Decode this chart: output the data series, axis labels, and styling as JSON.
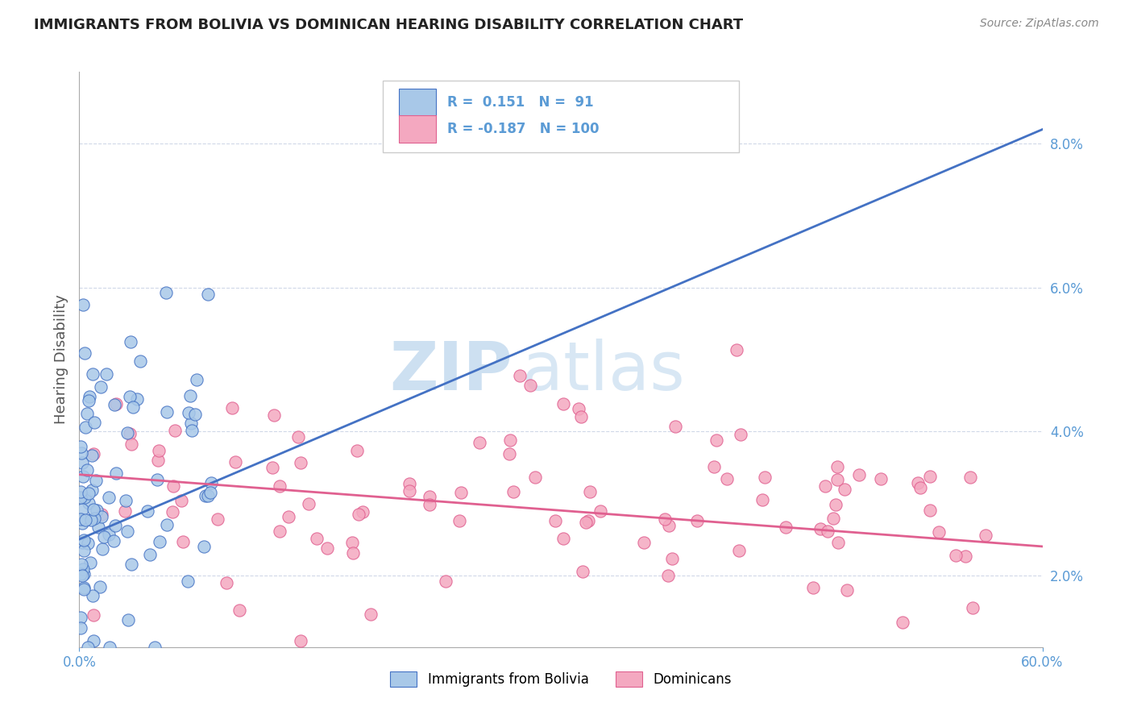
{
  "title": "IMMIGRANTS FROM BOLIVIA VS DOMINICAN HEARING DISABILITY CORRELATION CHART",
  "source": "Source: ZipAtlas.com",
  "ylabel": "Hearing Disability",
  "right_yticks": [
    2.0,
    4.0,
    6.0,
    8.0
  ],
  "xlim": [
    0.0,
    0.6
  ],
  "ylim": [
    0.01,
    0.09
  ],
  "r_bolivia": 0.151,
  "n_bolivia": 91,
  "r_dominican": -0.187,
  "n_dominican": 100,
  "color_bolivia": "#a8c8e8",
  "color_bolivia_dark": "#4472c4",
  "color_dominican": "#f4a8c0",
  "color_dominican_dark": "#e06090",
  "color_bolivia_line": "#4472c4",
  "color_dominican_line": "#e06090",
  "color_gray_dash": "#b0b8c8",
  "watermark_color": "#c8ddf0",
  "legend_box_color": "#e8e8e8",
  "tick_color": "#5b9bd5",
  "grid_color": "#d0d8e8"
}
